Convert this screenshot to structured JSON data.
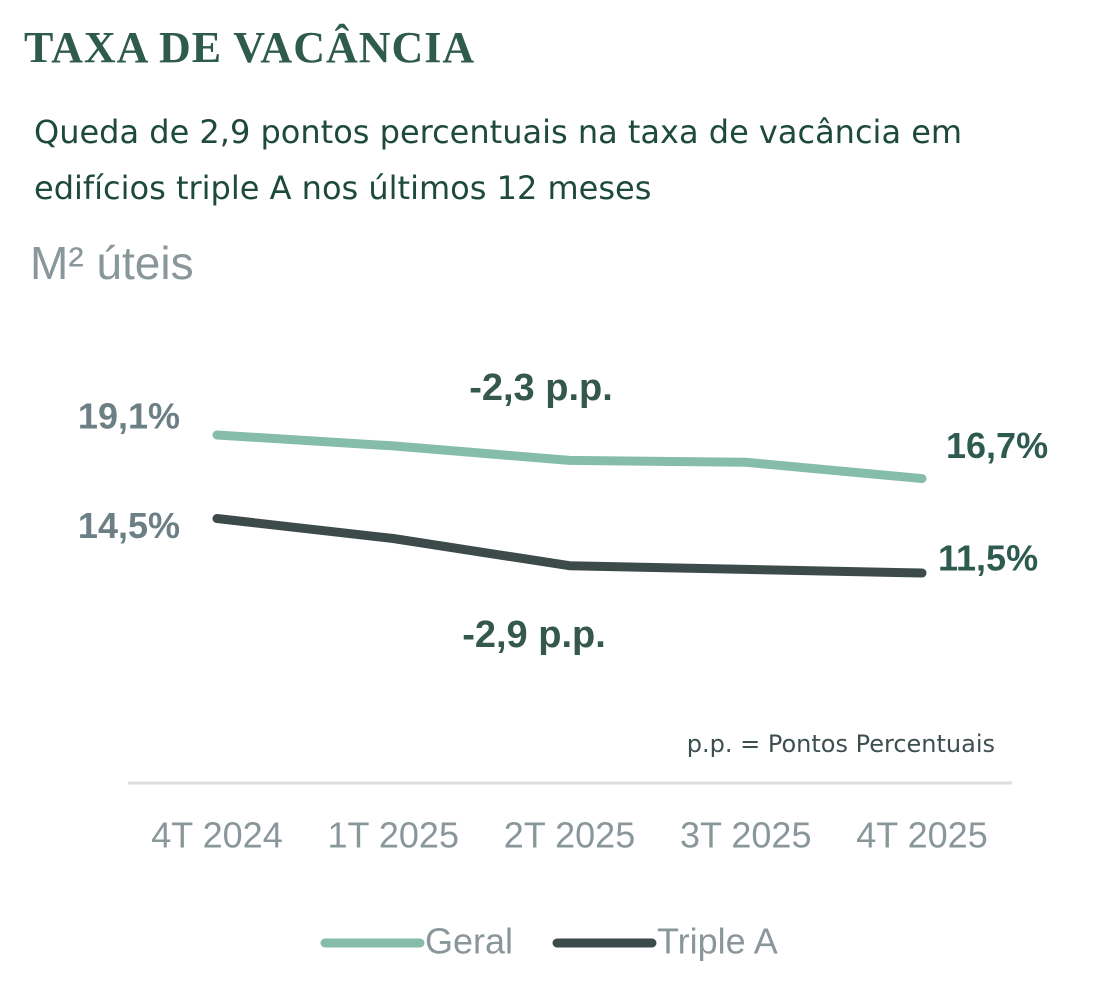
{
  "chart_data": {
    "type": "line",
    "title": "TAXA DE VACÂNCIA",
    "subtitle": "Queda de 2,9 pontos percentuais na taxa de vacância em edifícios triple A nos últimos 12 meses",
    "y_label": "M² úteis",
    "categories": [
      "4T 2024",
      "1T 2025",
      "2T 2025",
      "3T 2025",
      "4T 2025"
    ],
    "series": [
      {
        "name": "Geral",
        "color": "#86bcaa",
        "values": [
          19.1,
          18.5,
          17.7,
          17.6,
          16.7
        ],
        "value_labels": [
          "19,1%",
          null,
          null,
          null,
          "16,7%"
        ]
      },
      {
        "name": "Triple A",
        "color": "#3d4a4a",
        "values": [
          14.5,
          13.4,
          11.9,
          11.7,
          11.5
        ],
        "value_labels": [
          "14,5%",
          null,
          null,
          null,
          "11,5%"
        ]
      }
    ],
    "annotations": [
      "-2,3 p.p.",
      "-2,9 p.p."
    ],
    "note": "p.p. = Pontos Percentuais"
  }
}
